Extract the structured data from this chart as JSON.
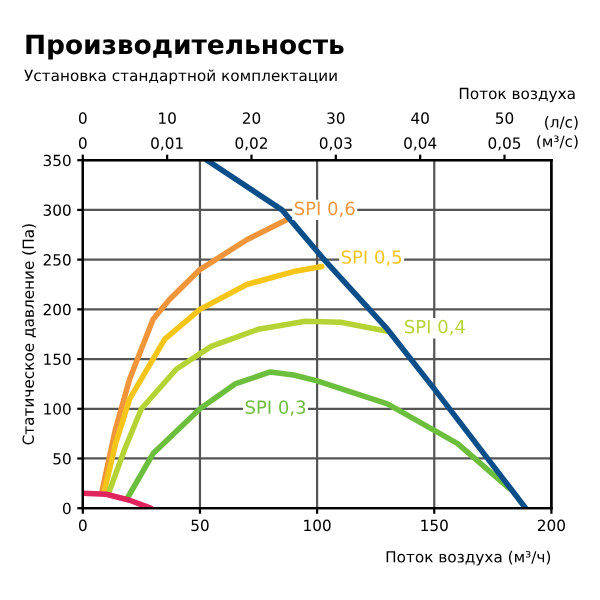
{
  "chart_data": {
    "type": "line",
    "title": "Производительность",
    "subtitle": "Установка стандартной комплектации",
    "xlabel": "Поток воздуха (м³/ч)",
    "ylabel": "Статическое давление (Па)",
    "x2label": "Поток воздуха",
    "xlim": [
      0,
      200
    ],
    "xticks": [
      0,
      50,
      100,
      150,
      200
    ],
    "ylim": [
      0,
      350
    ],
    "yticks": [
      0,
      50,
      100,
      150,
      200,
      250,
      300,
      350
    ],
    "x2lim": [
      0,
      55.56
    ],
    "x2ticks": [
      0,
      10,
      20,
      30,
      40,
      50
    ],
    "grid": true,
    "legend": false,
    "marker": "none",
    "line_style": "solid",
    "series": [
      {
        "name": "SPI 0,6",
        "color": "#f0953a",
        "x": [
          8,
          14,
          20,
          30,
          37,
          50,
          70,
          87
        ],
        "values": [
          15,
          80,
          130,
          190,
          210,
          240,
          270,
          290
        ]
      },
      {
        "name": "SPI 0,5",
        "color": "#f5c518",
        "x": [
          9,
          14,
          20,
          35,
          50,
          70,
          90,
          102
        ],
        "values": [
          15,
          65,
          110,
          170,
          200,
          225,
          238,
          243
        ]
      },
      {
        "name": "SPI 0,4",
        "color": "#b5d334",
        "x": [
          11,
          18,
          25,
          40,
          55,
          75,
          95,
          110,
          130
        ],
        "values": [
          15,
          60,
          100,
          140,
          163,
          180,
          188,
          187,
          178
        ]
      },
      {
        "name": "SPI 0,3",
        "color": "#6cbf3c",
        "x": [
          19,
          30,
          50,
          65,
          80,
          90,
          100,
          130,
          160,
          182
        ],
        "values": [
          10,
          55,
          100,
          125,
          137,
          134,
          128,
          105,
          65,
          20
        ]
      },
      {
        "color": "#0b4f8a",
        "x": [
          53,
          85,
          103,
          130,
          150,
          189
        ],
        "values": [
          350,
          300,
          250,
          180,
          120,
          0
        ]
      },
      {
        "color": "#e0245e",
        "x": [
          0,
          10,
          20,
          29
        ],
        "values": [
          15,
          14,
          8,
          0
        ]
      }
    ],
    "annotations": [
      "0",
      "0,01",
      "0,02",
      "0,03",
      "0,04",
      "0,05",
      "(л/с)",
      "(м³/с)"
    ]
  }
}
